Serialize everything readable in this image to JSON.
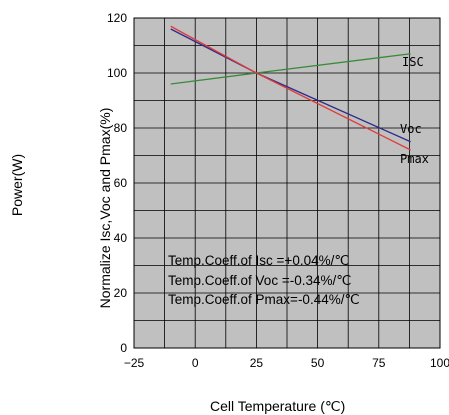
{
  "chart_data": {
    "type": "line",
    "outer_ylabel": "Power(W)",
    "ylabel": "Normalize Isc,Voc and Pmax(%)",
    "xlabel": "Cell Temperature (℃)",
    "xlim": [
      -25,
      100
    ],
    "ylim": [
      0,
      120
    ],
    "xticks": [
      "−25",
      "0",
      "25",
      "50",
      "75",
      "100"
    ],
    "xtick_values": [
      -25,
      0,
      25,
      50,
      75,
      100
    ],
    "yticks": [
      "0",
      "20",
      "40",
      "60",
      "80",
      "100",
      "120"
    ],
    "ytick_values": [
      0,
      20,
      40,
      60,
      80,
      100,
      120
    ],
    "grid": true,
    "background": "#c0c0c0",
    "series": [
      {
        "name": "ISC",
        "color": "#3a8a3a",
        "x": [
          -10,
          25,
          88
        ],
        "y": [
          96,
          100,
          107
        ]
      },
      {
        "name": "Voc",
        "color": "#2b2b8c",
        "x": [
          -10,
          25,
          88
        ],
        "y": [
          116,
          100,
          75
        ]
      },
      {
        "name": "Pmax",
        "color": "#e03a3a",
        "x": [
          -10,
          25,
          88
        ],
        "y": [
          117,
          100,
          72
        ]
      }
    ],
    "annotations": [
      "Temp.Coeff.of Isc =+0.04%/℃",
      "Temp.Coeff.of Voc =-0.34%/℃",
      "Temp.Coeff.of Pmax=-0.44%/℃"
    ]
  }
}
